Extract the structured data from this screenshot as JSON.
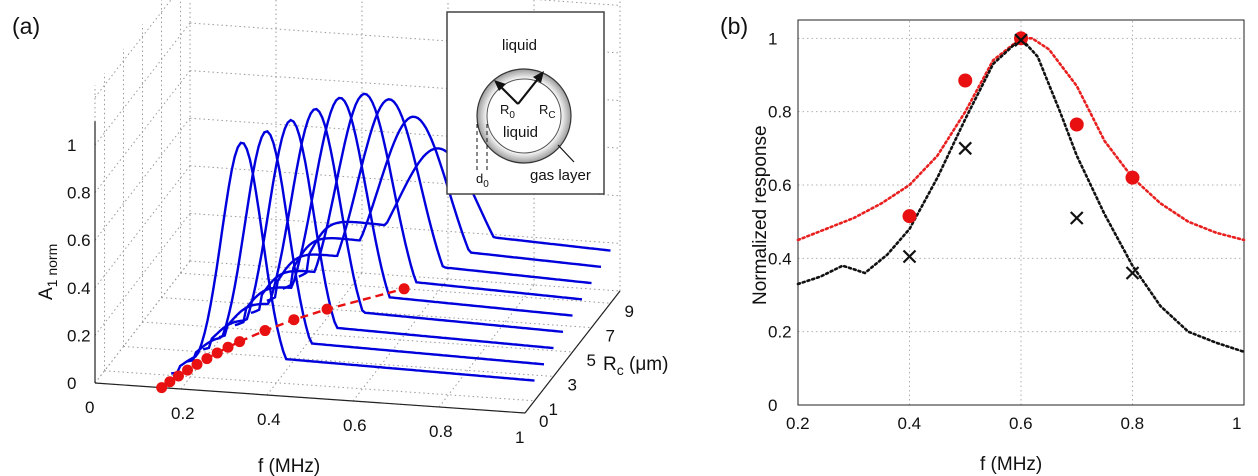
{
  "figure": {
    "panel_a_label": "(a)",
    "panel_b_label": "(b)"
  },
  "inset": {
    "outer_label": "liquid",
    "inner_label": "liquid",
    "r0_label": "R",
    "r0_sub": "0",
    "rc_label": "R",
    "rc_sub": "C",
    "d0_label": "d",
    "d0_sub": "0",
    "gas_label": "gas layer"
  },
  "chart_data": [
    {
      "type": "line",
      "panel": "(a)",
      "projection": "3d-waterfall",
      "xlabel": "f (MHz)",
      "ylabel_main": "A",
      "ylabel_sub": "1 norm",
      "zlabel_main": "R",
      "zlabel_sub": "c",
      "zlabel_unit": " (μm)",
      "x_ticks": [
        "0",
        "0.2",
        "0.4",
        "0.6",
        "0.8",
        "1"
      ],
      "y_ticks": [
        "0",
        "0.2",
        "0.4",
        "0.6",
        "0.8",
        "1"
      ],
      "z_ticks": [
        "0",
        "1",
        "3",
        "5",
        "7",
        "9"
      ],
      "xlim": [
        0,
        1
      ],
      "ylim": [
        0,
        1
      ],
      "zlim": [
        0,
        10
      ],
      "series": [
        {
          "rc": 1,
          "peak_f": 0.6,
          "width": 0.09,
          "baseline": 0.0
        },
        {
          "rc": 2,
          "peak_f": 0.6,
          "width": 0.095,
          "baseline": 0.01
        },
        {
          "rc": 3,
          "peak_f": 0.6,
          "width": 0.1,
          "baseline": 0.02
        },
        {
          "rc": 4,
          "peak_f": 0.6,
          "width": 0.108,
          "baseline": 0.03
        },
        {
          "rc": 5,
          "peak_f": 0.6,
          "width": 0.116,
          "baseline": 0.04
        },
        {
          "rc": 6,
          "peak_f": 0.6,
          "width": 0.125,
          "baseline": 0.05
        },
        {
          "rc": 7,
          "peak_f": 0.6,
          "width": 0.138,
          "baseline": 0.06
        },
        {
          "rc": 8,
          "peak_f": 0.6,
          "width": 0.155,
          "baseline": 0.07
        },
        {
          "rc": 9,
          "peak_f": 0.6,
          "width": 0.18,
          "baseline": 0.08
        }
      ],
      "tail_amplitudes": [
        0.1,
        0.12,
        0.14,
        0.16,
        0.18,
        0.2,
        0.22,
        0.24,
        0.26
      ],
      "peak_amplitudes": [
        1.0,
        1.0,
        1.0,
        1.0,
        1.0,
        0.97,
        0.9,
        0.78,
        0.6
      ],
      "base_points": {
        "rc": [
          0,
          0.5,
          1,
          1.5,
          2,
          2.5,
          3,
          3.5,
          4,
          5,
          6,
          7,
          9
        ],
        "f": [
          0.155,
          0.163,
          0.172,
          0.182,
          0.193,
          0.205,
          0.218,
          0.232,
          0.248,
          0.285,
          0.33,
          0.385,
          0.52
        ]
      },
      "line_color": "#0000dd",
      "marker_color": "#e81010"
    },
    {
      "type": "line",
      "panel": "(b)",
      "xlabel": "f (MHz)",
      "ylabel": "Normalized response",
      "xlim": [
        0.2,
        1
      ],
      "ylim": [
        0,
        1.05
      ],
      "x_ticks": [
        "0.2",
        "0.4",
        "0.6",
        "0.8",
        "1"
      ],
      "y_ticks": [
        "0",
        "0.2",
        "0.4",
        "0.6",
        "0.8",
        "1"
      ],
      "grid": true,
      "series": [
        {
          "style": "red-dotted",
          "color": "#e82020",
          "x": [
            0.2,
            0.25,
            0.3,
            0.35,
            0.4,
            0.45,
            0.5,
            0.55,
            0.6,
            0.62,
            0.65,
            0.7,
            0.75,
            0.8,
            0.85,
            0.9,
            0.95,
            1.0
          ],
          "y": [
            0.45,
            0.48,
            0.51,
            0.55,
            0.6,
            0.68,
            0.8,
            0.94,
            1.0,
            1.0,
            0.97,
            0.87,
            0.72,
            0.62,
            0.55,
            0.5,
            0.47,
            0.45
          ]
        },
        {
          "style": "black-dotted",
          "color": "#111111",
          "x": [
            0.2,
            0.24,
            0.28,
            0.3,
            0.32,
            0.36,
            0.4,
            0.45,
            0.5,
            0.55,
            0.6,
            0.63,
            0.67,
            0.7,
            0.75,
            0.8,
            0.85,
            0.9,
            0.95,
            1.0
          ],
          "y": [
            0.33,
            0.35,
            0.38,
            0.37,
            0.36,
            0.41,
            0.48,
            0.62,
            0.78,
            0.93,
            1.0,
            0.95,
            0.8,
            0.68,
            0.52,
            0.38,
            0.27,
            0.2,
            0.17,
            0.145
          ]
        },
        {
          "style": "red-markers",
          "color": "#e81010",
          "x": [
            0.4,
            0.5,
            0.6,
            0.7,
            0.8
          ],
          "y": [
            0.515,
            0.885,
            1.0,
            0.765,
            0.62
          ]
        },
        {
          "style": "black-crosses",
          "color": "#111111",
          "x": [
            0.4,
            0.5,
            0.6,
            0.7,
            0.8
          ],
          "y": [
            0.405,
            0.7,
            0.995,
            0.51,
            0.36
          ]
        }
      ]
    }
  ]
}
